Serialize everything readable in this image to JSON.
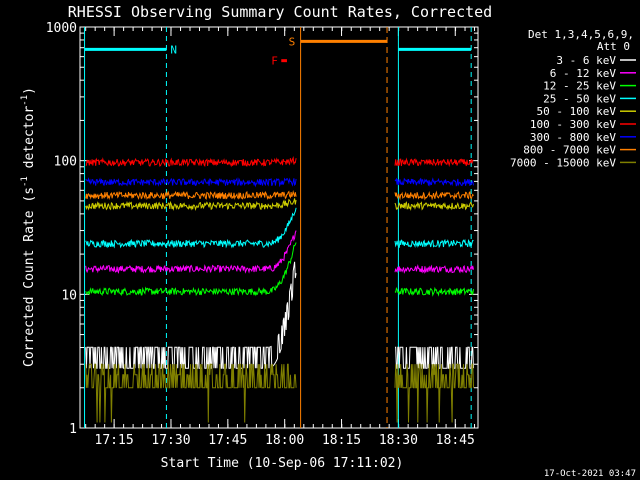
{
  "chart_data": {
    "type": "line",
    "title": "RHESSI Observing Summary Count Rates, Corrected",
    "xlabel": "Start Time (10-Sep-06 17:11:02)",
    "ylabel": "Corrected Count Rate (s",
    "ylabel_sup1": "-1",
    "ylabel_mid": " detector",
    "ylabel_sup2": "-1",
    "ylabel_end": ")",
    "y_scale": "log",
    "ylim": [
      1,
      1000
    ],
    "xlim_minutes": [
      17.1,
      18.85
    ],
    "x_ticks": [
      {
        "label": "17:15",
        "t": 17.25
      },
      {
        "label": "17:30",
        "t": 17.5
      },
      {
        "label": "17:45",
        "t": 17.75
      },
      {
        "label": "18:00",
        "t": 18.0
      },
      {
        "label": "18:15",
        "t": 18.25
      },
      {
        "label": "18:30",
        "t": 18.5
      },
      {
        "label": "18:45",
        "t": 18.75
      }
    ],
    "y_ticks": [
      {
        "label": "1",
        "v": 1
      },
      {
        "label": "10",
        "v": 10
      },
      {
        "label": "100",
        "v": 100
      },
      {
        "label": "1000",
        "v": 1000
      }
    ],
    "legend_title_1": "Det 1,3,4,5,6,9,",
    "legend_title_2": "Att 0",
    "legend_position": "right",
    "series": [
      {
        "name": "3 - 6 keV",
        "color": "#ffffff",
        "level_before": 3.5,
        "level_after": 3.5,
        "flare_peak": 18
      },
      {
        "name": "6 - 12 keV",
        "color": "#ff00ff",
        "level_before": 15.5,
        "level_after": 15.5,
        "flare_peak": 30
      },
      {
        "name": "12 - 25 keV",
        "color": "#00ff00",
        "level_before": 10.5,
        "level_after": 10.5,
        "flare_peak": 25
      },
      {
        "name": "25 - 50 keV",
        "color": "#00ffff",
        "level_before": 24,
        "level_after": 24,
        "flare_peak": 45
      },
      {
        "name": "50 - 100 keV",
        "color": "#cccc00",
        "level_before": 46,
        "level_after": 46,
        "flare_peak": 50
      },
      {
        "name": "100 - 300 keV",
        "color": "#ff0000",
        "level_before": 97,
        "level_after": 97,
        "flare_peak": 100
      },
      {
        "name": "300 - 800 keV",
        "color": "#0000ff",
        "level_before": 69,
        "level_after": 69,
        "flare_peak": 70
      },
      {
        "name": "800 - 7000 keV",
        "color": "#ff8000",
        "level_before": 55,
        "level_after": 55,
        "flare_peak": 56
      },
      {
        "name": "7000 - 15000 keV",
        "color": "#808000",
        "level_before": 2.5,
        "level_after": 2.5,
        "flare_peak": 2.5
      }
    ],
    "annotations": [
      {
        "label": "N",
        "color": "#00ffff",
        "t_start": 17.12,
        "t_end": 17.48,
        "bar_value": 680
      },
      {
        "label": "F",
        "color": "#ff0000",
        "t_start": 17.985,
        "t_end": 18.01,
        "bar_value": 560
      },
      {
        "label": "S",
        "color": "#ff8000",
        "t_start": 18.07,
        "t_end": 18.45,
        "bar_value": 780
      },
      {
        "label": "",
        "color": "#00ffff",
        "t_start": 18.5,
        "t_end": 18.82,
        "bar_value": 680
      }
    ],
    "data_gap_minutes": [
      18.05,
      18.48
    ]
  },
  "footer": {
    "timestamp": "17-Oct-2021 03:47"
  }
}
